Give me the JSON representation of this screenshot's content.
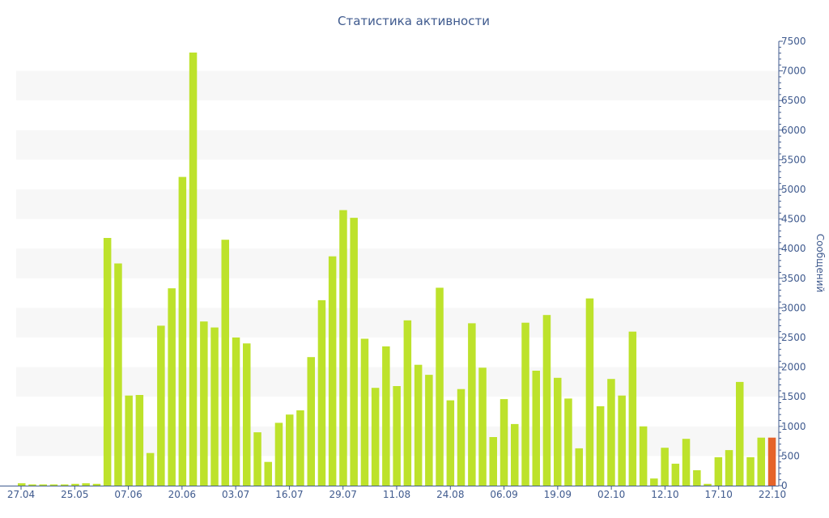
{
  "chart_data": {
    "type": "bar",
    "title": "Статистика активности",
    "ylabel": "Сообщений",
    "y_axis_position": "right",
    "ylim": [
      0,
      7500
    ],
    "y_ticks": [
      0,
      500,
      1000,
      1500,
      2000,
      2500,
      3000,
      3500,
      4000,
      4500,
      5000,
      5500,
      6000,
      6500,
      7000,
      7500
    ],
    "x_tick_labels": [
      "27.04",
      "25.05",
      "07.06",
      "20.06",
      "03.07",
      "16.07",
      "29.07",
      "11.08",
      "24.08",
      "06.09",
      "19.09",
      "02.10",
      "12.10",
      "17.10",
      "22.10"
    ],
    "grid": "horizontal alternating bands",
    "colors": {
      "bar": "#bde22b",
      "highlight": "#e5632a",
      "band": "#f7f7f7",
      "text": "#3f5a8e",
      "axis": "#3f5a8e"
    },
    "values": [
      40,
      20,
      20,
      20,
      20,
      30,
      40,
      30,
      4180,
      3750,
      1520,
      1530,
      550,
      2700,
      3330,
      5210,
      7310,
      2770,
      2670,
      4150,
      2500,
      2400,
      900,
      400,
      1060,
      1200,
      1270,
      2170,
      3130,
      3870,
      4650,
      4520,
      2480,
      1650,
      2350,
      1680,
      2790,
      2040,
      1870,
      3340,
      1440,
      1630,
      2740,
      1990,
      820,
      1460,
      1040,
      2750,
      1940,
      2880,
      1820,
      1470,
      630,
      3160,
      1340,
      1800,
      1520,
      2600,
      1000,
      120,
      640,
      370,
      790,
      260,
      30,
      480,
      600,
      1750,
      480,
      810,
      810
    ],
    "highlight_index": 70
  }
}
